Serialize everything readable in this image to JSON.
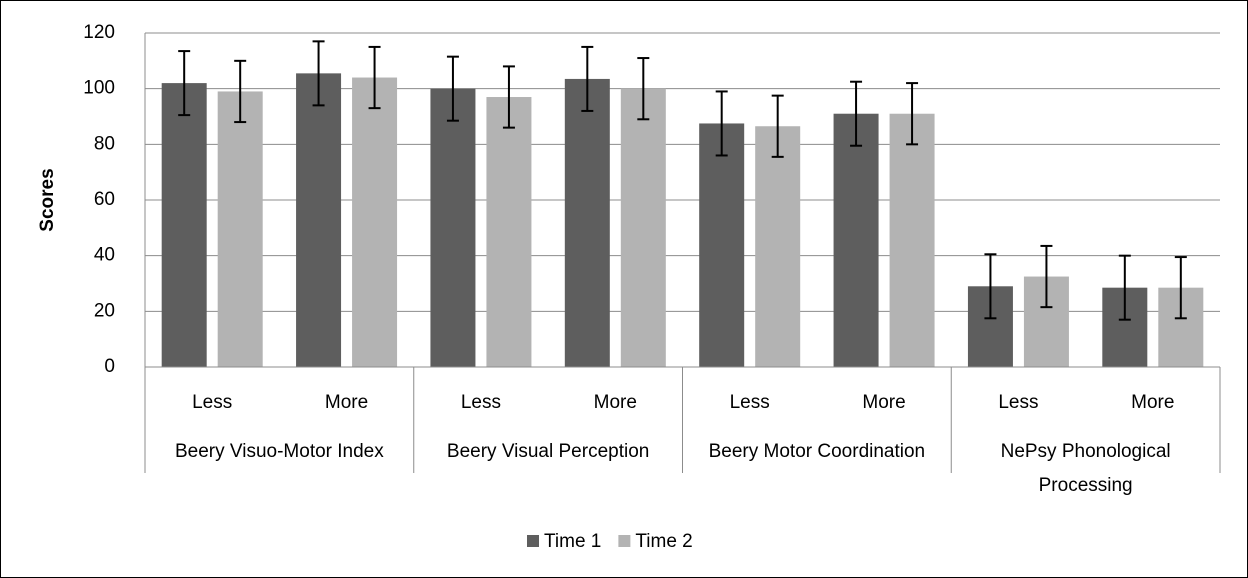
{
  "chart_data": {
    "type": "bar",
    "y_label": "Scores",
    "categories": [
      "Less",
      "More",
      "Less",
      "More",
      "Less",
      "More",
      "Less",
      "More"
    ],
    "groups": [
      "Beery Visuo-Motor Index",
      "Beery Visual Perception",
      "Beery Motor Coordination",
      "NePsy Phonological Processing"
    ],
    "series": [
      {
        "name": "Time 1",
        "color": "#5e5e5e",
        "values": [
          102,
          105.5,
          100,
          103.5,
          87.5,
          91,
          29,
          28.5
        ],
        "errors": [
          11.5,
          11.5,
          11.5,
          11.5,
          11.5,
          11.5,
          11.5,
          11.5
        ]
      },
      {
        "name": "Time 2",
        "color": "#b3b3b3",
        "values": [
          99,
          104,
          97,
          100,
          86.5,
          91,
          32.5,
          28.5
        ],
        "errors": [
          11,
          11,
          11,
          11,
          11,
          11,
          11,
          11
        ]
      }
    ],
    "ylim": [
      0,
      120
    ],
    "yticks": [
      0,
      20,
      40,
      60,
      80,
      100,
      120
    ],
    "grid": true,
    "legend": "bottom"
  }
}
